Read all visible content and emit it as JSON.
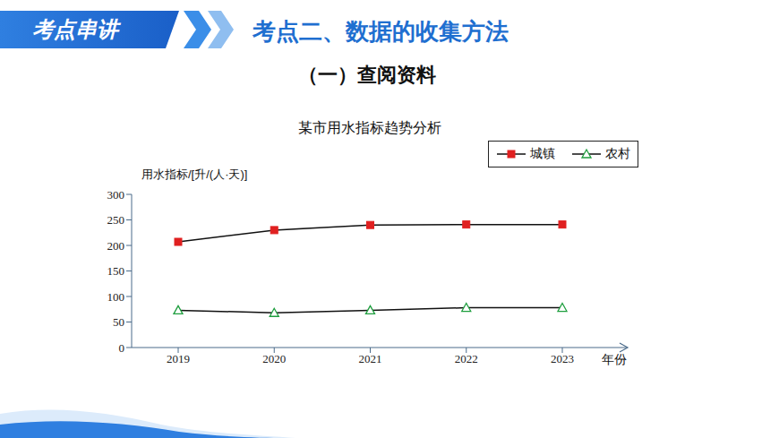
{
  "header": {
    "badge": "考点串讲",
    "title": "考点二、数据的收集方法",
    "subtitle": "（一）查阅资料"
  },
  "chart_data": {
    "type": "line",
    "title": "某市用水指标趋势分析",
    "y_label": "用水指标/[升/(人·天)]",
    "x_label": "年份",
    "categories": [
      "2019",
      "2020",
      "2021",
      "2022",
      "2023"
    ],
    "series": [
      {
        "name": "城镇",
        "color": "#e02020",
        "marker": "square",
        "values": [
          207,
          230,
          240,
          241,
          241
        ]
      },
      {
        "name": "农村",
        "color": "#1e9e3e",
        "marker": "triangle",
        "values": [
          73,
          68,
          73,
          78,
          78
        ]
      }
    ],
    "ylim": [
      0,
      300
    ],
    "yticks": [
      0,
      50,
      100,
      150,
      200,
      250,
      300
    ],
    "grid": false,
    "legend": "top-right"
  }
}
